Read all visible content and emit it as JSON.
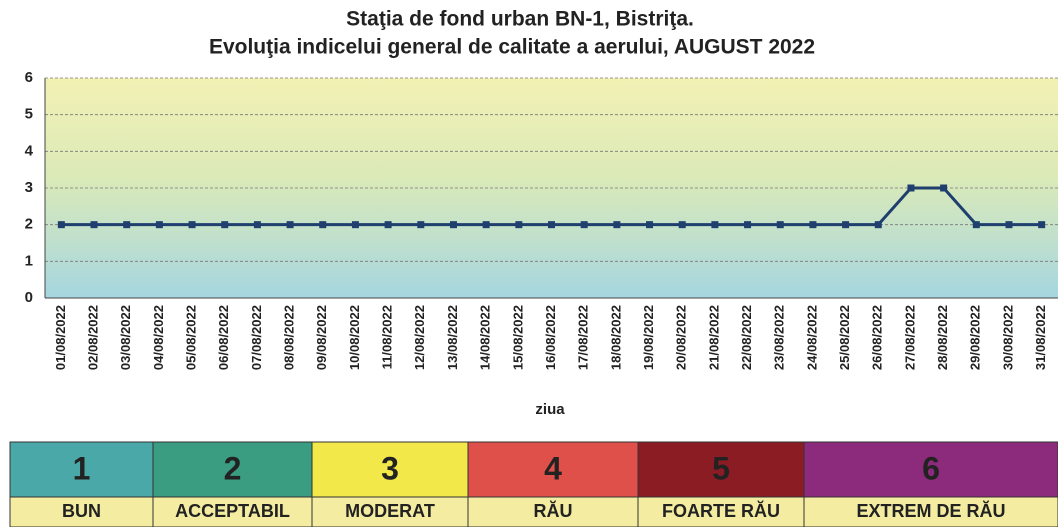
{
  "chart_data": {
    "type": "line",
    "title": [
      "Staţia de fond urban BN-1, Bistriţa.",
      "Evoluţia indicelui general de calitate a aerului, AUGUST 2022"
    ],
    "xlabel": "ziua",
    "categories": [
      "01/08/2022",
      "02/08/2022",
      "03/08/2022",
      "04/08/2022",
      "05/08/2022",
      "06/08/2022",
      "07/08/2022",
      "08/08/2022",
      "09/08/2022",
      "10/08/2022",
      "11/08/2022",
      "12/08/2022",
      "13/08/2022",
      "14/08/2022",
      "15/08/2022",
      "16/08/2022",
      "17/08/2022",
      "18/08/2022",
      "19/08/2022",
      "20/08/2022",
      "21/08/2022",
      "22/08/2022",
      "23/08/2022",
      "24/08/2022",
      "25/08/2022",
      "26/08/2022",
      "27/08/2022",
      "28/08/2022",
      "29/08/2022",
      "30/08/2022",
      "31/08/2022"
    ],
    "series": [
      {
        "color": "#1f3f6e",
        "values": [
          2,
          2,
          2,
          2,
          2,
          2,
          2,
          2,
          2,
          2,
          2,
          2,
          2,
          2,
          2,
          2,
          2,
          2,
          2,
          2,
          2,
          2,
          2,
          2,
          2,
          2,
          3,
          3,
          2,
          2,
          2
        ]
      }
    ],
    "ylim": [
      0,
      6
    ],
    "yticks": [
      0,
      1,
      2,
      3,
      4,
      5,
      6
    ],
    "grid": true
  },
  "aqi_scale": [
    {
      "value": "1",
      "label": "BUN",
      "color": "#4aa9a8",
      "text_color": "#1f3d8c"
    },
    {
      "value": "2",
      "label": "ACCEPTABIL",
      "color": "#3a9c80",
      "text_color": "#1f3d8c"
    },
    {
      "value": "3",
      "label": "MODERAT",
      "color": "#f2e84a",
      "text_color": "#5a5a2a"
    },
    {
      "value": "4",
      "label": "RĂU",
      "color": "#e0504a",
      "text_color": "#1f3d8c"
    },
    {
      "value": "5",
      "label": "FOARTE RĂU",
      "color": "#8c1c24",
      "text_color": "#ffffff"
    },
    {
      "value": "6",
      "label": "EXTREM DE RĂU",
      "color": "#8c2a7c",
      "text_color": "#ffffff"
    }
  ]
}
